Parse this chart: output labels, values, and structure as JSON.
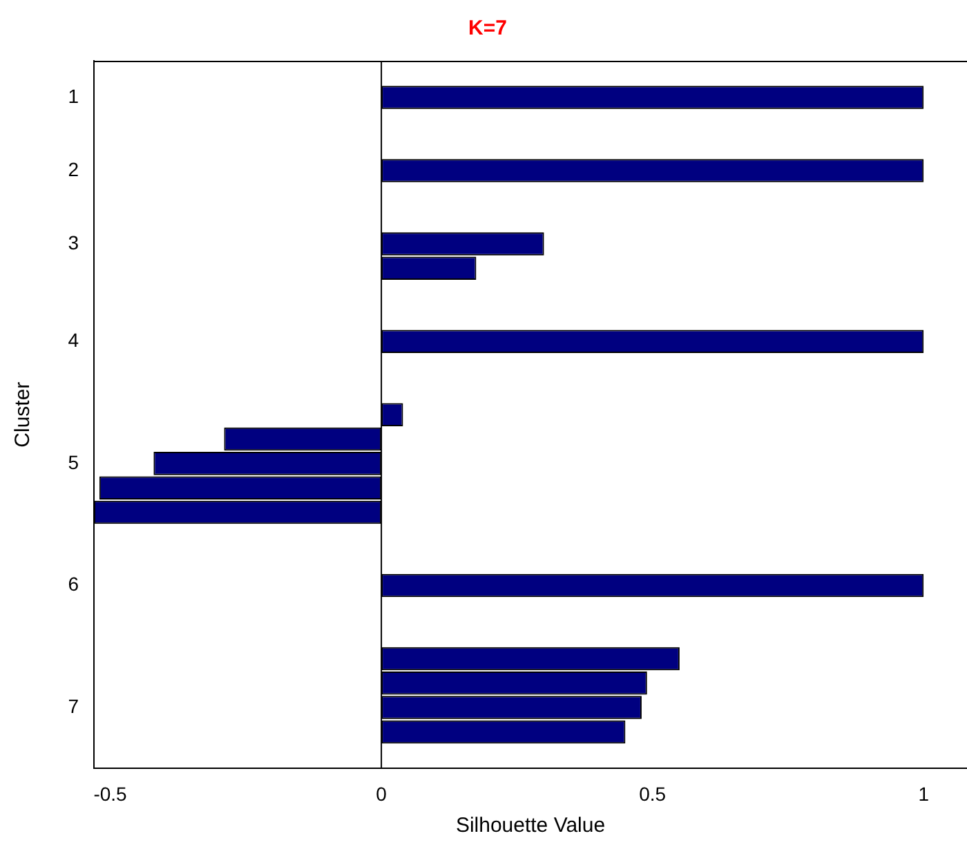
{
  "chart_data": {
    "type": "bar",
    "orientation": "horizontal",
    "title": "K=7",
    "xlabel": "Silhouette Value",
    "ylabel": "Cluster",
    "categories": [
      null,
      "1",
      null,
      null,
      "2",
      null,
      null,
      "3",
      null,
      null,
      null,
      "4",
      null,
      null,
      null,
      null,
      "5",
      null,
      null,
      null,
      null,
      "6",
      null,
      null,
      null,
      null,
      "7",
      null,
      null
    ],
    "values": [
      null,
      1.0,
      null,
      null,
      1.0,
      null,
      null,
      0.3,
      0.175,
      null,
      null,
      1.0,
      null,
      null,
      0.04,
      -0.29,
      -0.42,
      -0.52,
      -0.53,
      null,
      null,
      1.0,
      null,
      null,
      0.55,
      0.49,
      0.48,
      0.45,
      null
    ],
    "color": "#000080",
    "xlim": [
      -0.53,
      1.08
    ],
    "xticks": [
      -0.5,
      0,
      0.5,
      1
    ],
    "ref_lines": [
      {
        "axis": "x",
        "value": 0,
        "color": "#000000"
      }
    ],
    "grid": false,
    "legend": false
  }
}
